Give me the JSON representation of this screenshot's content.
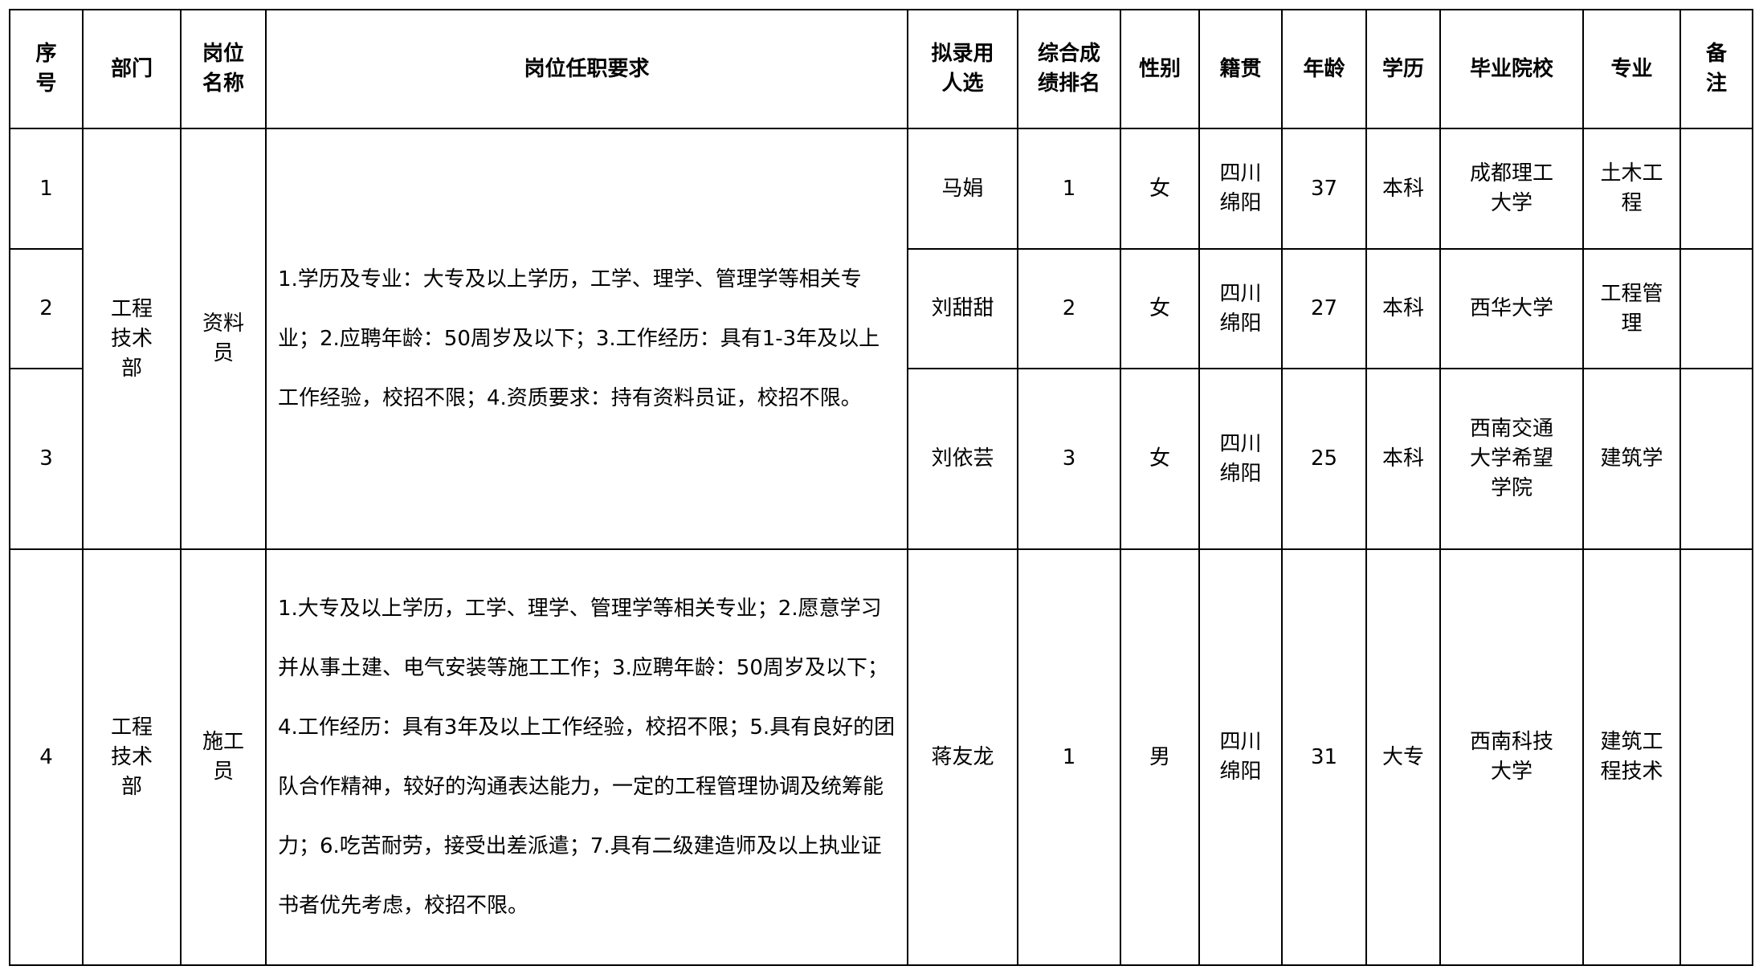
{
  "headers": [
    "序\n号",
    "部门",
    "岗位\n名称",
    "岗位任职要求",
    "拟录用\n人选",
    "综合成\n绩排名",
    "性别",
    "籍贯",
    "年龄",
    "学历",
    "毕业院校",
    "专业",
    "备\n注"
  ],
  "groups": [
    {
      "department": "工程\n技术\n部",
      "position": "资料\n员",
      "requirements": "1.学历及专业：大专及以上学历，工学、理学、管理学等相关专业；2.应聘年龄：50周岁及以下；3.工作经历：具有1-3年及以上工作经验，校招不限；4.资质要求：持有资料员证，校招不限。",
      "rows": [
        {
          "no": "1",
          "name": "马娟",
          "rank": "1",
          "gender": "女",
          "origin": "四川\n绵阳",
          "age": "37",
          "education": "本科",
          "school": "成都理工\n大学",
          "major": "土木工\n程",
          "note": ""
        },
        {
          "no": "2",
          "name": "刘甜甜",
          "rank": "2",
          "gender": "女",
          "origin": "四川\n绵阳",
          "age": "27",
          "education": "本科",
          "school": "西华大学",
          "major": "工程管\n理",
          "note": ""
        },
        {
          "no": "3",
          "name": "刘依芸",
          "rank": "3",
          "gender": "女",
          "origin": "四川\n绵阳",
          "age": "25",
          "education": "本科",
          "school": "西南交通\n大学希望\n学院",
          "major": "建筑学",
          "note": ""
        }
      ]
    },
    {
      "department": "工程\n技术\n部",
      "position": "施工\n员",
      "requirements": "1.大专及以上学历，工学、理学、管理学等相关专业；2.愿意学习并从事土建、电气安装等施工工作；3.应聘年龄：50周岁及以下；4.工作经历：具有3年及以上工作经验，校招不限；5.具有良好的团队合作精神，较好的沟通表达能力，一定的工程管理协调及统筹能力；6.吃苦耐劳，接受出差派遣；7.具有二级建造师及以上执业证书者优先考虑，校招不限。",
      "rows": [
        {
          "no": "4",
          "name": "蒋友龙",
          "rank": "1",
          "gender": "男",
          "origin": "四川\n绵阳",
          "age": "31",
          "education": "大专",
          "school": "西南科技\n大学",
          "major": "建筑工\n程技术",
          "note": ""
        }
      ]
    }
  ]
}
